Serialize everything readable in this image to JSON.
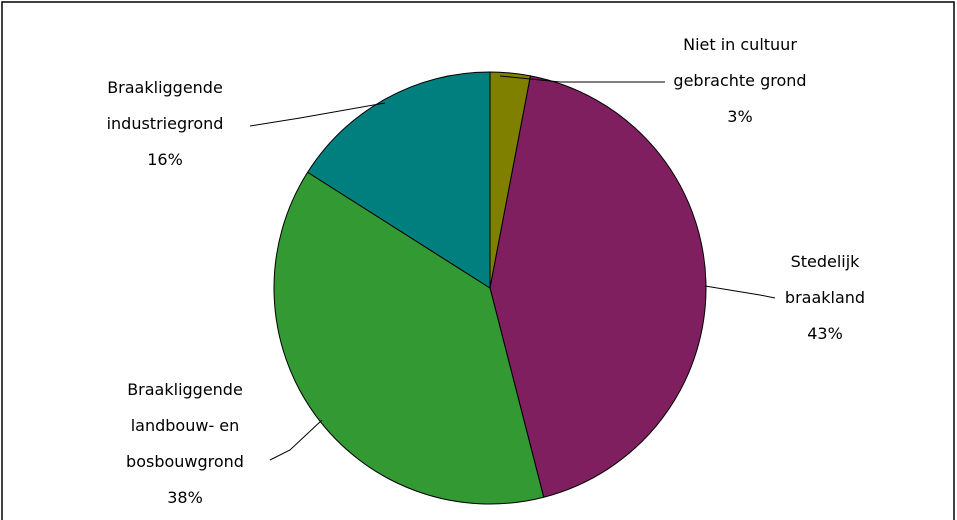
{
  "chart_data": {
    "type": "pie",
    "categories": [
      "Niet in cultuur\ngebrachte grond",
      "Stedelijk\nbraakland",
      "Braakliggende\nlandbouw- en\nbosbouwgrond",
      "Braakliggende\nindustriegrond"
    ],
    "values": [
      3,
      43,
      38,
      16
    ],
    "value_labels": [
      "3%",
      "43%",
      "38%",
      "16%"
    ],
    "colors": [
      "#808000",
      "#7f1f5f",
      "#339933",
      "#007f7f"
    ]
  }
}
